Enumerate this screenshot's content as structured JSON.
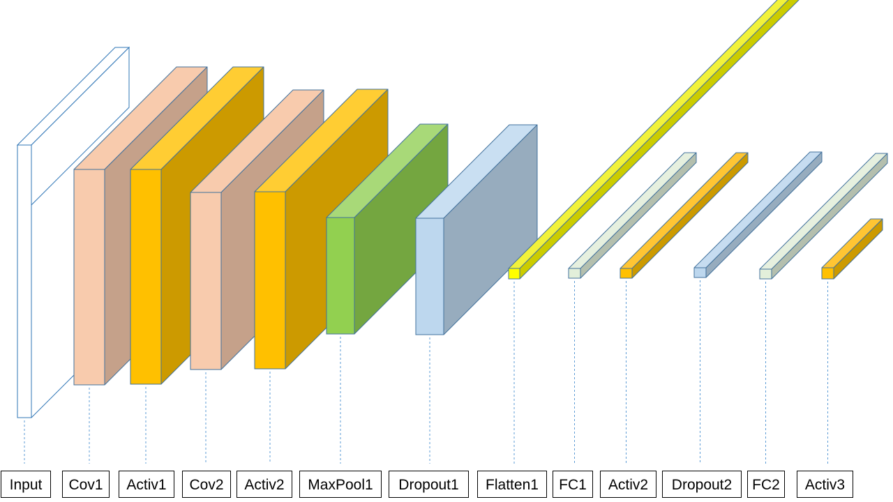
{
  "layers": [
    {
      "label": "Input",
      "kind": "input-frame",
      "colors": {
        "front": "#ffffff",
        "side": "#ffffff",
        "top": "#ffffff",
        "edge": "#2e75b6"
      }
    },
    {
      "label": "Cov1",
      "kind": "block",
      "colors": {
        "front": "#f8cbad",
        "side": "#c5a18a",
        "top": "#f8cbad",
        "edge": "#41719c"
      }
    },
    {
      "label": "Activ1",
      "kind": "block",
      "colors": {
        "front": "#ffc000",
        "side": "#cc9a00",
        "top": "#ffcd33",
        "edge": "#41719c"
      }
    },
    {
      "label": "Cov2",
      "kind": "block",
      "colors": {
        "front": "#f8cbad",
        "side": "#c5a18a",
        "top": "#f8cbad",
        "edge": "#41719c"
      }
    },
    {
      "label": "Activ2",
      "kind": "block",
      "colors": {
        "front": "#ffc000",
        "side": "#cc9a00",
        "top": "#ffcd33",
        "edge": "#41719c"
      }
    },
    {
      "label": "MaxPool1",
      "kind": "block",
      "colors": {
        "front": "#92d050",
        "side": "#74a640",
        "top": "#a8d978",
        "edge": "#41719c"
      }
    },
    {
      "label": "Dropout1",
      "kind": "block",
      "colors": {
        "front": "#bdd7ee",
        "side": "#97acbe",
        "top": "#c9dff2",
        "edge": "#41719c"
      }
    },
    {
      "label": "Flatten1",
      "kind": "rod",
      "colors": {
        "front": "#ffff00",
        "side": "#cccc00",
        "top": "#f2f23a",
        "edge": "#41719c"
      }
    },
    {
      "label": "FC1",
      "kind": "rod",
      "colors": {
        "front": "#e2efda",
        "side": "#b4bfae",
        "top": "#e6f0df",
        "edge": "#41719c"
      }
    },
    {
      "label": "Activ2",
      "kind": "rod",
      "colors": {
        "front": "#ffc000",
        "side": "#cc9a00",
        "top": "#ffc533",
        "edge": "#41719c"
      }
    },
    {
      "label": "Dropout2",
      "kind": "rod",
      "colors": {
        "front": "#bdd7ee",
        "side": "#97acbe",
        "top": "#c6dcf0",
        "edge": "#41719c"
      }
    },
    {
      "label": "FC2",
      "kind": "rod",
      "colors": {
        "front": "#e2efda",
        "side": "#b4bfae",
        "top": "#e6f0df",
        "edge": "#41719c"
      }
    },
    {
      "label": "Activ3",
      "kind": "rod",
      "colors": {
        "front": "#ffc000",
        "side": "#cc9a00",
        "top": "#ffc533",
        "edge": "#41719c"
      }
    }
  ],
  "guide_color": "#5b9bd5"
}
